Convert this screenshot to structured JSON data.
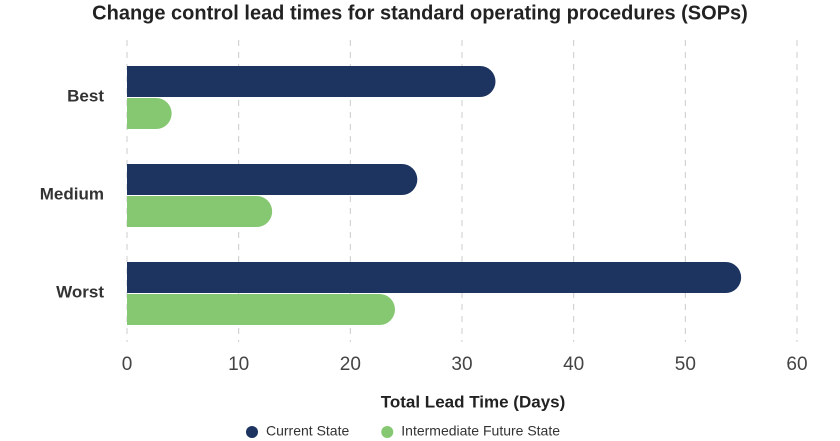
{
  "chart_data": {
    "type": "hbar",
    "title": "Change control lead times for standard operating procedures (SOPs)",
    "x_label": "Total Lead Time (Days)",
    "categories": [
      "Best",
      "Medium",
      "Worst"
    ],
    "series": [
      {
        "name": "Current State",
        "color": "#1d3461",
        "values": [
          33,
          26,
          55
        ]
      },
      {
        "name": "Intermediate Future State",
        "color": "#86c872",
        "values": [
          4,
          13,
          24
        ]
      }
    ],
    "xlim": [
      0,
      60
    ],
    "xticks": [
      0,
      10,
      20,
      30,
      40,
      50,
      60
    ],
    "grid": true,
    "legend": "bottom"
  }
}
